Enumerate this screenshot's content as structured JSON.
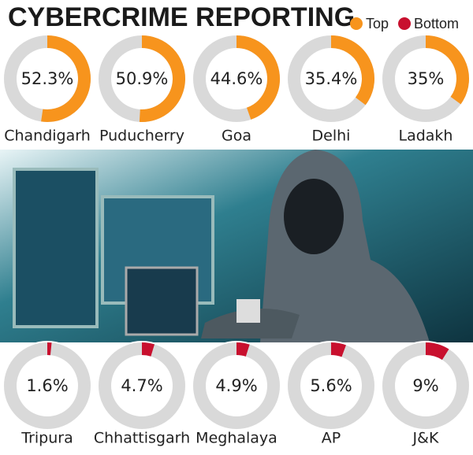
{
  "chart_data": {
    "type": "donut",
    "title": "CYBERCRIME REPORTING",
    "legend": "top-right",
    "series": [
      {
        "name": "Top",
        "color": "#f7941d",
        "categories": [
          "Chandigarh",
          "Puducherry",
          "Goa",
          "Delhi",
          "Ladakh"
        ],
        "values": [
          52.3,
          50.9,
          44.6,
          35.4,
          35
        ],
        "value_labels": [
          "52.3%",
          "50.9%",
          "44.6%",
          "35.4%",
          "35%"
        ]
      },
      {
        "name": "Bottom",
        "color": "#c8102e",
        "categories": [
          "Tripura",
          "Chhattisgarh",
          "Meghalaya",
          "AP",
          "J&K"
        ],
        "values": [
          1.6,
          4.7,
          4.9,
          5.6,
          9
        ],
        "value_labels": [
          "1.6%",
          "4.7%",
          "4.9%",
          "5.6%",
          "9%"
        ]
      }
    ]
  }
}
